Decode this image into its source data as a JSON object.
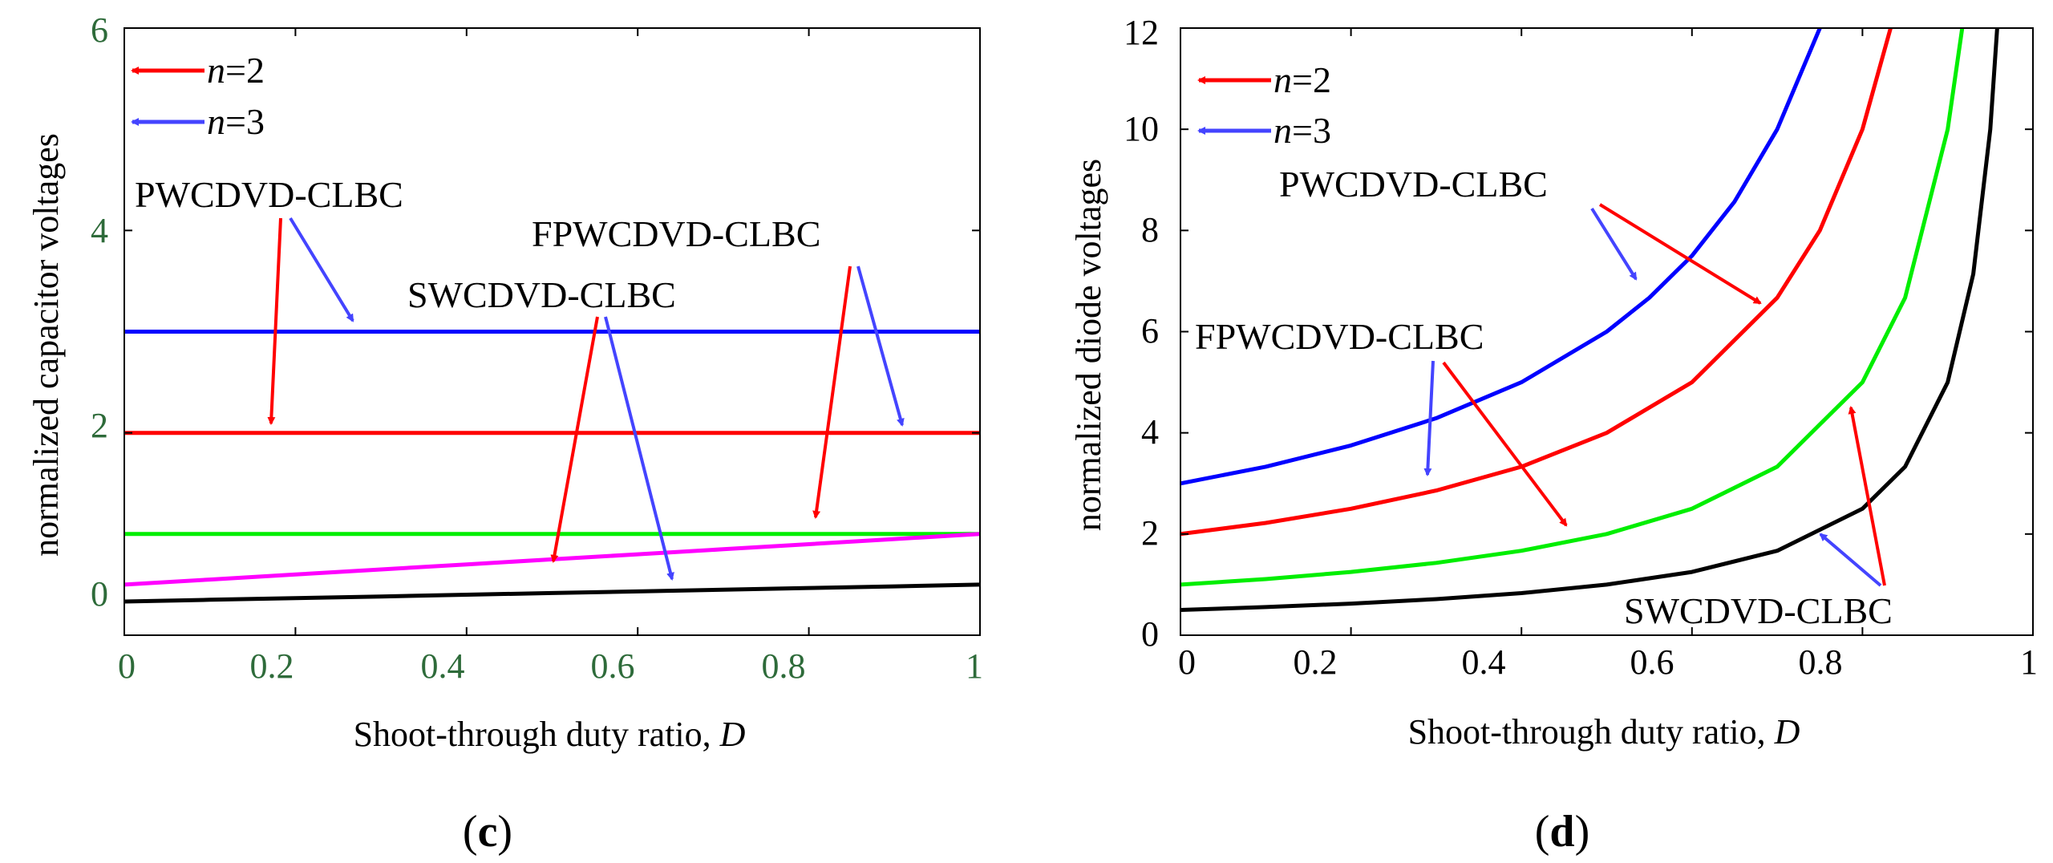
{
  "chart_data": [
    {
      "type": "line",
      "panel_label": "c",
      "xlabel": "Shoot-through duty ratio, ",
      "xlabel_var": "D",
      "ylabel": "normalized capacitor voltages",
      "xlim": [
        0,
        1
      ],
      "ylim": [
        0,
        6
      ],
      "x_ticks": [
        0,
        0.2,
        0.4,
        0.6,
        0.8,
        1
      ],
      "x_tick_labels": [
        "0",
        "0.2",
        "0.4",
        "0.6",
        "0.8",
        "1"
      ],
      "y_ticks": [
        0,
        2,
        4,
        6
      ],
      "y_tick_labels": [
        "0",
        "2",
        "4",
        "6"
      ],
      "legend": [
        {
          "prefix": "n",
          "text": "=2",
          "color": "#ff0000"
        },
        {
          "prefix": "n",
          "text": "=3",
          "color": "#4444ff"
        }
      ],
      "series": [
        {
          "name": "PWCDVD-CLBC (n=3)",
          "color": "#0000ff",
          "x": [
            0,
            1
          ],
          "y": [
            3,
            3
          ]
        },
        {
          "name": "PWCDVD-CLBC (n=2)",
          "color": "#ff0000",
          "x": [
            0,
            1
          ],
          "y": [
            2,
            2
          ]
        },
        {
          "name": "FPWCDVD-CLBC",
          "color": "#00ee00",
          "x": [
            0,
            1
          ],
          "y": [
            1,
            1
          ]
        },
        {
          "name": "SWCDVD-CLBC (n=2)",
          "color": "#ff00ff",
          "x": [
            0,
            0.1,
            0.2,
            0.3,
            0.4,
            0.5,
            0.6,
            0.7,
            0.8,
            0.9,
            1.0
          ],
          "y": [
            0.5,
            0.55,
            0.6,
            0.65,
            0.7,
            0.75,
            0.8,
            0.85,
            0.9,
            0.95,
            1.0
          ]
        },
        {
          "name": "SWCDVD-CLBC (n=3)",
          "color": "#000000",
          "x": [
            0,
            0.1,
            0.2,
            0.3,
            0.4,
            0.5,
            0.6,
            0.7,
            0.8,
            0.9,
            1.0
          ],
          "y": [
            0.333,
            0.35,
            0.367,
            0.383,
            0.4,
            0.417,
            0.433,
            0.45,
            0.467,
            0.483,
            0.5
          ]
        }
      ],
      "annotations": [
        {
          "text": "PWCDVD-CLBC"
        },
        {
          "text": "FPWCDVD-CLBC"
        },
        {
          "text": "SWCDVD-CLBC"
        }
      ]
    },
    {
      "type": "line",
      "panel_label": "d",
      "xlabel": "Shoot-through duty ratio, ",
      "xlabel_var": "D",
      "ylabel": "normalized diode voltages",
      "xlim": [
        0,
        1
      ],
      "ylim": [
        0,
        12
      ],
      "x_ticks": [
        0,
        0.2,
        0.4,
        0.6,
        0.8,
        1
      ],
      "x_tick_labels": [
        "0",
        "0.2",
        "0.4",
        "0.6",
        "0.8",
        "1"
      ],
      "y_ticks": [
        0,
        2,
        4,
        6,
        8,
        10,
        12
      ],
      "y_tick_labels": [
        "0",
        "2",
        "4",
        "6",
        "8",
        "10",
        "12"
      ],
      "legend": [
        {
          "prefix": "n",
          "text": "=2",
          "color": "#ff0000"
        },
        {
          "prefix": "n",
          "text": "=3",
          "color": "#4444ff"
        }
      ],
      "series": [
        {
          "name": "PWCDVD-CLBC (n=3)",
          "color": "#0000ff",
          "x": [
            0,
            0.1,
            0.2,
            0.3,
            0.4,
            0.5,
            0.55,
            0.6,
            0.65,
            0.7,
            0.75
          ],
          "y": [
            3,
            3.33,
            3.75,
            4.29,
            5.0,
            6.0,
            6.67,
            7.5,
            8.57,
            10.0,
            12.0
          ]
        },
        {
          "name": "PWCDVD-CLBC (n=2)",
          "color": "#ff0000",
          "x": [
            0,
            0.1,
            0.2,
            0.3,
            0.4,
            0.5,
            0.6,
            0.7,
            0.75,
            0.8,
            0.833
          ],
          "y": [
            2,
            2.22,
            2.5,
            2.86,
            3.33,
            4.0,
            5.0,
            6.67,
            8.0,
            10.0,
            12.0
          ]
        },
        {
          "name": "FPWCDVD-CLBC",
          "color": "#00ee00",
          "x": [
            0,
            0.1,
            0.2,
            0.3,
            0.4,
            0.5,
            0.6,
            0.7,
            0.8,
            0.85,
            0.9,
            0.917
          ],
          "y": [
            1,
            1.11,
            1.25,
            1.43,
            1.67,
            2.0,
            2.5,
            3.33,
            5.0,
            6.67,
            10.0,
            12.0
          ]
        },
        {
          "name": "SWCDVD-CLBC",
          "color": "#000000",
          "x": [
            0,
            0.1,
            0.2,
            0.3,
            0.4,
            0.5,
            0.6,
            0.7,
            0.8,
            0.85,
            0.9,
            0.93,
            0.95,
            0.958
          ],
          "y": [
            0.5,
            0.556,
            0.625,
            0.714,
            0.833,
            1.0,
            1.25,
            1.67,
            2.5,
            3.33,
            5.0,
            7.14,
            10.0,
            12.0
          ]
        }
      ],
      "annotations": [
        {
          "text": "PWCDVD-CLBC"
        },
        {
          "text": "FPWCDVD-CLBC"
        },
        {
          "text": "SWCDVD-CLBC"
        }
      ]
    }
  ]
}
